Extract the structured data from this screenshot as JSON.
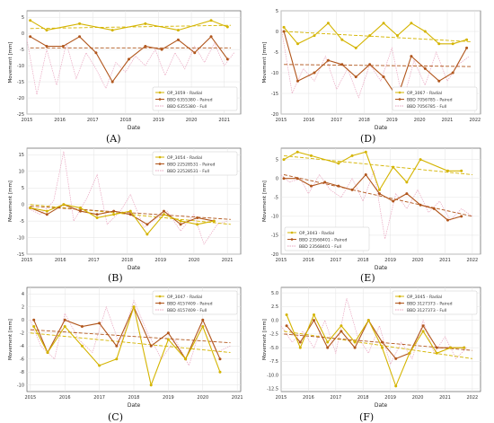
{
  "chart_data": [
    {
      "type": "line",
      "panel": "(A)",
      "xlabel": "Date",
      "ylabel": "Movement [mm]",
      "xlim": [
        2015.0,
        2021.5
      ],
      "ylim": [
        -25,
        7
      ],
      "xticks": [
        "2015",
        "2016",
        "2017",
        "2018",
        "2019",
        "2020",
        "2021"
      ],
      "yticks": [
        "5",
        "0",
        "-5",
        "-10",
        "-15",
        "-20",
        "-25"
      ],
      "legend_position": "bottom-right",
      "colors": {
        "radial": "#d4b400",
        "paired": "#b1561c",
        "full": "#e9a6c0"
      },
      "series": [
        {
          "name": "OP_3059 - Radial",
          "x": [
            2015.1,
            2015.6,
            2016.6,
            2017.6,
            2018.6,
            2019.6,
            2020.6,
            2021.1
          ],
          "y": [
            4,
            1,
            3,
            1,
            3,
            1,
            4,
            2
          ]
        },
        {
          "name": "BBD 6355380 - Paired",
          "x": [
            2015.1,
            2015.6,
            2016.1,
            2016.6,
            2017.1,
            2017.6,
            2018.1,
            2018.6,
            2019.1,
            2019.6,
            2020.1,
            2020.6,
            2021.1
          ],
          "y": [
            -1,
            -4,
            -4,
            -1,
            -6,
            -15,
            -8,
            -4,
            -5,
            -2,
            -6,
            -1,
            -8
          ]
        },
        {
          "name": "BBD 6355380 - Full",
          "x": [
            2015.0,
            2015.3,
            2015.6,
            2015.9,
            2016.2,
            2016.5,
            2016.8,
            2017.1,
            2017.4,
            2017.7,
            2018.0,
            2018.3,
            2018.6,
            2018.9,
            2019.2,
            2019.5,
            2019.8,
            2020.1,
            2020.4,
            2020.7,
            2021.0,
            2021.3
          ],
          "y": [
            -2,
            -19,
            -5,
            -16,
            -3,
            -14,
            -6,
            -11,
            -17,
            -9,
            -12,
            -7,
            -10,
            -5,
            -13,
            -6,
            -11,
            -4,
            -9,
            -3,
            -10,
            -6
          ]
        }
      ],
      "trends": [
        {
          "series": "OP_3059 - Radial",
          "y0": 1.5,
          "y1": 2.5
        },
        {
          "series": "BBD 6355380 - Paired",
          "y0": -4.5,
          "y1": -4.5
        }
      ]
    },
    {
      "type": "line",
      "panel": "(D)",
      "xlabel": "Date",
      "ylabel": "Movement [mm]",
      "xlim": [
        2015.0,
        2022.2
      ],
      "ylim": [
        -20,
        5
      ],
      "xticks": [
        "2015",
        "2016",
        "2017",
        "2018",
        "2019",
        "2020",
        "2021",
        "2022"
      ],
      "yticks": [
        "5",
        "0",
        "-5",
        "-10",
        "-15",
        "-20"
      ],
      "legend_position": "bottom-right",
      "colors": {
        "radial": "#d4b400",
        "paired": "#b1561c",
        "full": "#e9a6c0"
      },
      "series": [
        {
          "name": "OP_3067 - Radial",
          "x": [
            2015.1,
            2015.6,
            2016.2,
            2016.7,
            2017.2,
            2017.7,
            2018.2,
            2018.7,
            2019.2,
            2019.7,
            2020.2,
            2020.7,
            2021.2,
            2021.7
          ],
          "y": [
            1,
            -3,
            -1,
            2,
            -2,
            -4,
            -1,
            2,
            -1,
            2,
            0,
            -3,
            -3,
            -2
          ]
        },
        {
          "name": "BBD 7056785 - Paired",
          "x": [
            2015.1,
            2015.6,
            2016.2,
            2016.7,
            2017.2,
            2017.7,
            2018.2,
            2018.7,
            2019.2,
            2019.7,
            2020.2,
            2020.7,
            2021.2,
            2021.7
          ],
          "y": [
            0,
            -12,
            -10,
            -7,
            -8,
            -11,
            -8,
            -11,
            -16,
            -6,
            -9,
            -12,
            -10,
            -4
          ]
        },
        {
          "name": "BBD 7056785 - Full",
          "x": [
            2015.0,
            2015.4,
            2015.8,
            2016.2,
            2016.6,
            2017.0,
            2017.4,
            2017.8,
            2018.2,
            2018.6,
            2019.0,
            2019.4,
            2019.8,
            2020.2,
            2020.6,
            2021.0,
            2021.4,
            2021.8
          ],
          "y": [
            1,
            -15,
            -9,
            -12,
            -6,
            -14,
            -9,
            -16,
            -8,
            -12,
            -4,
            -17,
            -7,
            -13,
            -5,
            -12,
            -8,
            -6
          ]
        }
      ],
      "trends": [
        {
          "series": "OP_3067 - Radial",
          "y0": 0,
          "y1": -2.5
        },
        {
          "series": "BBD 7056785 - Paired",
          "y0": -8,
          "y1": -8.5
        }
      ]
    },
    {
      "type": "line",
      "panel": "(B)",
      "xlabel": "Date",
      "ylabel": "Movement [mm]",
      "xlim": [
        2015.0,
        2021.4
      ],
      "ylim": [
        -15,
        17
      ],
      "xticks": [
        "2015",
        "2016",
        "2017",
        "2018",
        "2019",
        "2020",
        "2021"
      ],
      "yticks": [
        "15",
        "10",
        "5",
        "0",
        "-5",
        "-10",
        "-15"
      ],
      "legend_position": "top-right",
      "colors": {
        "radial": "#d4b400",
        "paired": "#b1561c",
        "full": "#e9a6c0"
      },
      "series": [
        {
          "name": "OP_3054 - Radial",
          "x": [
            2015.1,
            2015.6,
            2016.1,
            2016.6,
            2017.1,
            2017.6,
            2018.1,
            2018.6,
            2019.1,
            2019.6,
            2020.1,
            2020.6
          ],
          "y": [
            -1,
            -2,
            0,
            -1,
            -4,
            -3,
            -2,
            -9,
            -3,
            -5,
            -6,
            -5
          ]
        },
        {
          "name": "BBD 22528531 - Paired",
          "x": [
            2015.1,
            2015.6,
            2016.1,
            2016.6,
            2017.1,
            2017.6,
            2018.1,
            2018.6,
            2019.1,
            2019.6,
            2020.1,
            2020.6
          ],
          "y": [
            -1,
            -3,
            0,
            -2,
            -3,
            -2,
            -3,
            -6,
            -2,
            -6,
            -4,
            -5
          ]
        },
        {
          "name": "BBD 22528531 - Full",
          "x": [
            2015.0,
            2015.4,
            2015.8,
            2016.1,
            2016.4,
            2016.8,
            2017.1,
            2017.4,
            2017.8,
            2018.1,
            2018.5,
            2018.9,
            2019.2,
            2019.6,
            2020.0,
            2020.3,
            2020.7,
            2021.0
          ],
          "y": [
            -1,
            -3,
            1,
            16,
            -5,
            2,
            9,
            -6,
            -2,
            3,
            -7,
            -4,
            -2,
            -8,
            -3,
            -12,
            -6,
            -5
          ]
        }
      ],
      "trends": [
        {
          "series": "OP_3054 - Radial",
          "y0": 0,
          "y1": -6
        },
        {
          "series": "BBD 22528531 - Paired",
          "y0": -0.5,
          "y1": -4.5
        }
      ]
    },
    {
      "type": "line",
      "panel": "(E)",
      "xlabel": "Date",
      "ylabel": "Movement [mm]",
      "xlim": [
        2015.0,
        2022.3
      ],
      "ylim": [
        -20,
        8
      ],
      "xticks": [
        "2015",
        "2016",
        "2017",
        "2018",
        "2019",
        "2020",
        "2021",
        "2022"
      ],
      "yticks": [
        "5",
        "0",
        "-5",
        "-10",
        "-15",
        "-20"
      ],
      "legend_position": "bottom-left",
      "colors": {
        "radial": "#d4b400",
        "paired": "#b1561c",
        "full": "#e9a6c0"
      },
      "series": [
        {
          "name": "OP_3043 - Radial",
          "x": [
            2015.1,
            2015.6,
            2016.1,
            2017.1,
            2017.6,
            2018.1,
            2018.6,
            2019.1,
            2019.6,
            2020.1,
            2021.1,
            2021.6
          ],
          "y": [
            5,
            7,
            6,
            4,
            6,
            7,
            -3,
            3,
            -1,
            5,
            2,
            2
          ]
        },
        {
          "name": "BBD 23568401 - Paired",
          "x": [
            2015.1,
            2015.6,
            2016.1,
            2016.6,
            2017.1,
            2017.6,
            2018.1,
            2018.6,
            2019.1,
            2019.6,
            2020.1,
            2020.6,
            2021.1,
            2021.6
          ],
          "y": [
            0,
            0,
            -2,
            -1,
            -2,
            -3,
            1,
            -4,
            -6,
            -4,
            -7,
            -8,
            -11,
            -10
          ]
        },
        {
          "name": "BBD 23568401 - Full",
          "x": [
            2015.0,
            2015.3,
            2015.7,
            2016.0,
            2016.4,
            2016.8,
            2017.2,
            2017.6,
            2018.0,
            2018.4,
            2018.8,
            2019.2,
            2019.6,
            2020.0,
            2020.4,
            2020.8,
            2021.2,
            2021.6,
            2022.0
          ],
          "y": [
            1,
            -1,
            0,
            -4,
            1,
            -3,
            -5,
            0,
            -6,
            2,
            -16,
            -4,
            -8,
            -3,
            -9,
            -6,
            -11,
            -8,
            -10
          ]
        }
      ],
      "trends": [
        {
          "series": "OP_3043 - Radial",
          "y0": 6,
          "y1": 1
        },
        {
          "series": "BBD 23568401 - Paired",
          "y0": 1,
          "y1": -10
        }
      ]
    },
    {
      "type": "line",
      "panel": "(C)",
      "xlabel": "Date",
      "ylabel": "Movement [mm]",
      "xlim": [
        2014.9,
        2021.1
      ],
      "ylim": [
        -11,
        5
      ],
      "xticks": [
        "2015",
        "2016",
        "2017",
        "2018",
        "2019",
        "2020",
        "2021"
      ],
      "yticks": [
        "4",
        "2",
        "0",
        "-2",
        "-4",
        "-6",
        "-8",
        "-10"
      ],
      "legend_position": "top-right",
      "colors": {
        "radial": "#d4b400",
        "paired": "#b1561c",
        "full": "#e9a6c0"
      },
      "series": [
        {
          "name": "OP_3047 - Radial",
          "x": [
            2015.1,
            2015.5,
            2016.0,
            2016.5,
            2017.0,
            2017.5,
            2018.0,
            2018.5,
            2019.0,
            2019.5,
            2020.0,
            2020.5
          ],
          "y": [
            -1,
            -5,
            -1,
            -4,
            -7,
            -6,
            2,
            -10,
            -3,
            -6,
            -1,
            -8
          ]
        },
        {
          "name": "BBD 4157409 - Paired",
          "x": [
            2015.1,
            2015.5,
            2016.0,
            2016.5,
            2017.0,
            2017.5,
            2018.0,
            2018.5,
            2019.0,
            2019.5,
            2020.0,
            2020.5
          ],
          "y": [
            0,
            -5,
            0,
            -1,
            -0.5,
            -4,
            2,
            -4,
            -2,
            -6,
            0,
            -6
          ]
        },
        {
          "name": "BBD 4157409 - Full",
          "x": [
            2015.0,
            2015.3,
            2015.7,
            2016.0,
            2016.4,
            2016.8,
            2017.2,
            2017.6,
            2018.0,
            2018.4,
            2018.8,
            2019.2,
            2019.6,
            2020.0,
            2020.4,
            2020.8
          ],
          "y": [
            0,
            -4,
            -6,
            1,
            -3,
            -5,
            2,
            -4,
            3,
            -2,
            -6,
            -3,
            -7,
            0,
            -5,
            -4
          ]
        }
      ],
      "trends": [
        {
          "series": "OP_3047 - Radial",
          "y0": -2,
          "y1": -5
        },
        {
          "series": "BBD 4157409 - Paired",
          "y0": -1.5,
          "y1": -3.5
        }
      ]
    },
    {
      "type": "line",
      "panel": "(F)",
      "xlabel": "Date",
      "ylabel": "Movement [mm]",
      "xlim": [
        2015.0,
        2022.3
      ],
      "ylim": [
        -13,
        6
      ],
      "xticks": [
        "2015",
        "2016",
        "2017",
        "2018",
        "2019",
        "2020",
        "2021",
        "2022"
      ],
      "yticks": [
        "5.0",
        "2.5",
        "0.0",
        "-2.5",
        "-5.0",
        "-7.5",
        "-10.0",
        "-12.5"
      ],
      "legend_position": "top-right",
      "colors": {
        "radial": "#d4b400",
        "paired": "#b1561c",
        "full": "#e9a6c0"
      },
      "series": [
        {
          "name": "OP_3045 - Radial",
          "x": [
            2015.2,
            2015.7,
            2016.2,
            2016.7,
            2017.2,
            2017.7,
            2018.2,
            2018.7,
            2019.2,
            2019.7,
            2020.2,
            2020.7,
            2021.2,
            2021.7
          ],
          "y": [
            1,
            -5,
            1,
            -4,
            -1,
            -4,
            0,
            -5,
            -12,
            -6,
            -2,
            -6,
            -5,
            -5
          ]
        },
        {
          "name": "BBD 3127373 - Paired",
          "x": [
            2015.2,
            2015.7,
            2016.2,
            2016.7,
            2017.2,
            2017.7,
            2018.2,
            2018.7,
            2019.2,
            2019.7,
            2020.2,
            2020.7,
            2021.2,
            2021.7
          ],
          "y": [
            -1,
            -4,
            0,
            -5,
            -2,
            -5,
            0,
            -4,
            -7,
            -6,
            -1,
            -5,
            -5,
            -5
          ]
        },
        {
          "name": "BBD 3127373 - Full",
          "x": [
            2015.0,
            2015.4,
            2015.8,
            2016.2,
            2016.6,
            2017.0,
            2017.4,
            2017.8,
            2018.2,
            2018.6,
            2019.0,
            2019.4,
            2019.8,
            2020.2,
            2020.6,
            2021.0,
            2021.4,
            2021.8
          ],
          "y": [
            -1,
            -4,
            -2,
            -5,
            0,
            -6,
            4,
            -3,
            -6,
            -1,
            -8,
            -4,
            -7,
            0,
            -6,
            -3,
            -7,
            -5
          ]
        }
      ],
      "trends": [
        {
          "series": "OP_3045 - Radial",
          "y0": -2,
          "y1": -7
        },
        {
          "series": "BBD 3127373 - Paired",
          "y0": -2.5,
          "y1": -5.5
        }
      ]
    }
  ]
}
